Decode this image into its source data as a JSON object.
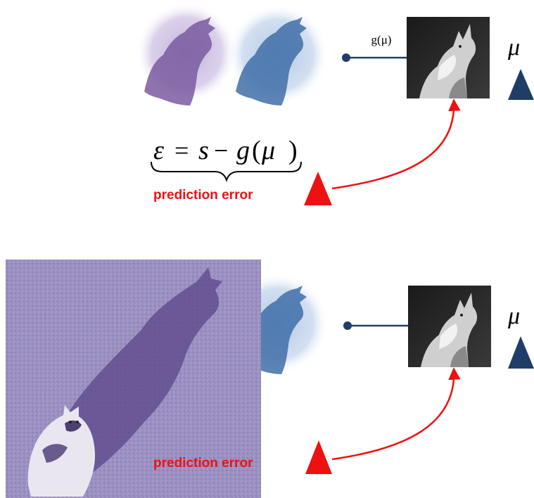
{
  "colors": {
    "error_red": "#ee1111",
    "triangle_navy": "#1f3d66",
    "connector_navy": "#1f3d66",
    "shadow_purple": "#7a5aa0",
    "shadow_blue": "#3f6ea8",
    "photo_purple": "#8c7fb4"
  },
  "top_panel": {
    "prediction_label": "g(μ)",
    "mu_symbol": "μ",
    "equation": {
      "lhs": "ε",
      "equals": "=",
      "s": "s",
      "minus": "−",
      "g": "g",
      "lparen": "(",
      "mu": "μ",
      "rparen": ")"
    },
    "error_label": "prediction error"
  },
  "bottom_panel": {
    "mu_symbol": "μ",
    "error_label": "prediction error"
  },
  "icons": [
    "wolf-photo-icon",
    "cat-photo-icon",
    "wolf-shadow-icon",
    "arrow-icon",
    "triangle-icon"
  ]
}
